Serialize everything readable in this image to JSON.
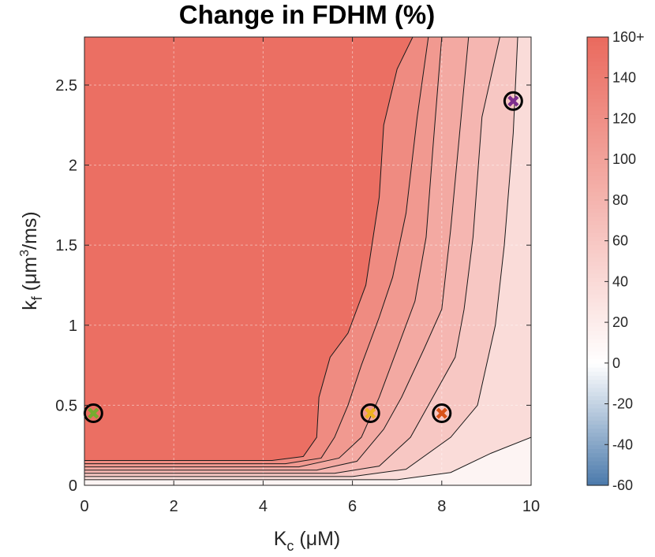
{
  "chart_data": {
    "type": "contour",
    "title": "Change in FDHM (%)",
    "xlabel": {
      "main": "K",
      "sub": "c",
      "unit": " (μM)"
    },
    "ylabel": {
      "main": "k",
      "sub": "f",
      "unit_pre": " (μm",
      "sup": "3",
      "unit_post": "/ms)"
    },
    "xlim": [
      0,
      10
    ],
    "ylim": [
      0,
      2.8
    ],
    "xticks": [
      0,
      2,
      4,
      6,
      8,
      10
    ],
    "xtick_labels": [
      "0",
      "2",
      "4",
      "6",
      "8",
      "10"
    ],
    "yticks": [
      0,
      0.5,
      1,
      1.5,
      2,
      2.5
    ],
    "ytick_labels": [
      "0",
      "0.5",
      "1",
      "1.5",
      "2",
      "2.5"
    ],
    "grid": true,
    "colorbar": {
      "range": [
        -60,
        160
      ],
      "ticks": [
        160,
        140,
        120,
        100,
        80,
        60,
        40,
        20,
        0,
        -20,
        -40,
        -60
      ],
      "tick_labels": [
        "160+",
        "140",
        "120",
        "100",
        "80",
        "60",
        "40",
        "20",
        "0",
        "-20",
        "-40",
        "-60"
      ],
      "colors": {
        "max": "#ea6a5e",
        "mid": "#ffffff",
        "min": "#4a79ab"
      }
    },
    "contour_lines": [
      [
        [
          0,
          0.155
        ],
        [
          4.2,
          0.155
        ],
        [
          4.9,
          0.18
        ],
        [
          5.2,
          0.3
        ],
        [
          5.25,
          0.55
        ],
        [
          5.5,
          0.8
        ],
        [
          5.9,
          0.95
        ],
        [
          6.3,
          1.25
        ],
        [
          6.6,
          1.8
        ],
        [
          6.7,
          2.25
        ],
        [
          7.0,
          2.6
        ],
        [
          7.35,
          2.8
        ]
      ],
      [
        [
          0,
          0.135
        ],
        [
          4.5,
          0.135
        ],
        [
          5.3,
          0.17
        ],
        [
          5.6,
          0.3
        ],
        [
          5.9,
          0.5
        ],
        [
          6.2,
          0.75
        ],
        [
          6.6,
          1.05
        ],
        [
          6.9,
          1.3
        ],
        [
          7.2,
          1.7
        ],
        [
          7.45,
          2.3
        ],
        [
          7.7,
          2.8
        ]
      ],
      [
        [
          0,
          0.115
        ],
        [
          4.8,
          0.115
        ],
        [
          5.7,
          0.17
        ],
        [
          6.2,
          0.3
        ],
        [
          6.6,
          0.55
        ],
        [
          7.0,
          0.85
        ],
        [
          7.4,
          1.15
        ],
        [
          7.65,
          1.55
        ],
        [
          7.8,
          2.1
        ],
        [
          8.0,
          2.8
        ]
      ],
      [
        [
          0,
          0.095
        ],
        [
          5.2,
          0.095
        ],
        [
          6.1,
          0.15
        ],
        [
          6.7,
          0.35
        ],
        [
          7.1,
          0.55
        ],
        [
          7.6,
          0.85
        ],
        [
          8.0,
          1.1
        ],
        [
          8.2,
          1.6
        ],
        [
          8.4,
          2.2
        ],
        [
          8.6,
          2.8
        ]
      ],
      [
        [
          0,
          0.075
        ],
        [
          5.6,
          0.075
        ],
        [
          6.6,
          0.12
        ],
        [
          7.3,
          0.3
        ],
        [
          7.8,
          0.55
        ],
        [
          8.3,
          0.8
        ],
        [
          8.5,
          1.1
        ],
        [
          8.7,
          1.55
        ],
        [
          8.9,
          2.3
        ],
        [
          9.3,
          2.8
        ]
      ],
      [
        [
          0,
          0.055
        ],
        [
          6.0,
          0.055
        ],
        [
          7.2,
          0.1
        ],
        [
          8.2,
          0.3
        ],
        [
          8.8,
          0.5
        ],
        [
          9.0,
          0.75
        ],
        [
          9.2,
          1.0
        ],
        [
          9.4,
          1.5
        ],
        [
          9.6,
          2.2
        ],
        [
          9.7,
          2.8
        ]
      ],
      [
        [
          0,
          0.035
        ],
        [
          7.0,
          0.035
        ],
        [
          8.2,
          0.08
        ],
        [
          9.1,
          0.2
        ],
        [
          10.0,
          0.3
        ]
      ]
    ],
    "region_values": [
      155,
      125,
      110,
      92,
      78,
      60,
      38,
      12
    ],
    "markers": [
      {
        "x": 0.2,
        "y": 0.45,
        "color": "#77ac30"
      },
      {
        "x": 6.4,
        "y": 0.45,
        "color": "#edb120"
      },
      {
        "x": 8.0,
        "y": 0.45,
        "color": "#d95319"
      },
      {
        "x": 9.6,
        "y": 2.4,
        "color": "#7e2f8e"
      }
    ]
  }
}
